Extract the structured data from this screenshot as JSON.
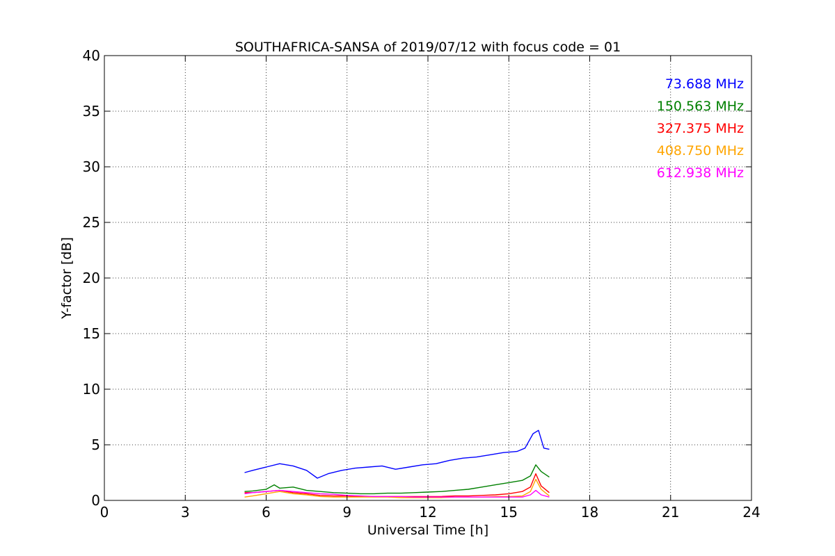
{
  "chart_data": {
    "type": "line",
    "title": "SOUTHAFRICA-SANSA of 2019/07/12 with focus code = 01",
    "xlabel": "Universal Time [h]",
    "ylabel": "Y-factor [dB]",
    "xlim": [
      0,
      24
    ],
    "ylim": [
      0,
      40
    ],
    "x_ticks": [
      0,
      3,
      6,
      9,
      12,
      15,
      18,
      21,
      24
    ],
    "y_ticks": [
      0,
      5,
      10,
      15,
      20,
      25,
      30,
      35,
      40
    ],
    "x_tick_labels": [
      "0",
      "3",
      "6",
      "9",
      "12",
      "15",
      "18",
      "21",
      "24"
    ],
    "y_tick_labels": [
      "0",
      "5",
      "10",
      "15",
      "20",
      "25",
      "30",
      "35",
      "40"
    ],
    "grid": true,
    "legend_position": "top-right",
    "series": [
      {
        "name": "73.688 MHz",
        "color": "#0000ff",
        "x": [
          5.2,
          5.5,
          6.0,
          6.5,
          7.0,
          7.5,
          7.9,
          8.3,
          8.8,
          9.3,
          9.8,
          10.3,
          10.8,
          11.3,
          11.8,
          12.3,
          12.8,
          13.3,
          13.8,
          14.3,
          14.8,
          15.3,
          15.6,
          15.9,
          16.1,
          16.3,
          16.5
        ],
        "y": [
          2.5,
          2.7,
          3.0,
          3.3,
          3.1,
          2.7,
          2.0,
          2.4,
          2.7,
          2.9,
          3.0,
          3.1,
          2.8,
          3.0,
          3.2,
          3.3,
          3.6,
          3.8,
          3.9,
          4.1,
          4.3,
          4.4,
          4.7,
          6.0,
          6.3,
          4.7,
          4.6
        ]
      },
      {
        "name": "150.563 MHz",
        "color": "#008000",
        "x": [
          5.2,
          5.5,
          6.0,
          6.3,
          6.5,
          7.0,
          7.5,
          8.0,
          8.5,
          9.0,
          9.5,
          10.0,
          10.5,
          11.0,
          11.5,
          12.0,
          12.5,
          13.0,
          13.5,
          14.0,
          14.5,
          15.0,
          15.5,
          15.8,
          16.0,
          16.2,
          16.5
        ],
        "y": [
          0.8,
          0.85,
          1.0,
          1.4,
          1.1,
          1.2,
          0.9,
          0.8,
          0.7,
          0.65,
          0.6,
          0.6,
          0.65,
          0.65,
          0.7,
          0.75,
          0.8,
          0.9,
          1.0,
          1.2,
          1.4,
          1.6,
          1.8,
          2.2,
          3.2,
          2.6,
          2.1
        ]
      },
      {
        "name": "327.375 MHz",
        "color": "#ff0000",
        "x": [
          5.2,
          5.5,
          6.0,
          6.5,
          7.0,
          7.5,
          8.0,
          8.5,
          9.0,
          9.5,
          10.0,
          10.5,
          11.0,
          11.5,
          12.0,
          12.5,
          13.0,
          13.5,
          14.0,
          14.5,
          15.0,
          15.5,
          15.8,
          16.0,
          16.2,
          16.5
        ],
        "y": [
          0.7,
          0.7,
          0.8,
          0.9,
          0.7,
          0.6,
          0.45,
          0.4,
          0.4,
          0.35,
          0.35,
          0.35,
          0.35,
          0.35,
          0.35,
          0.35,
          0.4,
          0.4,
          0.45,
          0.5,
          0.6,
          0.8,
          1.2,
          2.4,
          1.3,
          0.7
        ]
      },
      {
        "name": "408.750 MHz",
        "color": "#ffa500",
        "x": [
          5.2,
          5.5,
          6.0,
          6.5,
          7.0,
          7.5,
          8.0,
          8.5,
          9.0,
          9.5,
          10.0,
          10.5,
          11.0,
          11.5,
          12.0,
          12.5,
          13.0,
          13.5,
          14.0,
          14.5,
          15.0,
          15.5,
          15.8,
          16.0,
          16.2,
          16.5
        ],
        "y": [
          0.3,
          0.4,
          0.6,
          0.8,
          0.6,
          0.5,
          0.35,
          0.3,
          0.3,
          0.3,
          0.3,
          0.3,
          0.25,
          0.25,
          0.25,
          0.25,
          0.3,
          0.3,
          0.3,
          0.35,
          0.35,
          0.4,
          0.8,
          1.9,
          1.0,
          0.4
        ]
      },
      {
        "name": "612.938 MHz",
        "color": "#ff00ff",
        "x": [
          5.2,
          5.5,
          6.0,
          6.5,
          7.0,
          7.5,
          8.0,
          8.5,
          9.0,
          9.5,
          10.0,
          10.5,
          11.0,
          11.5,
          12.0,
          12.5,
          13.0,
          13.5,
          14.0,
          14.5,
          15.0,
          15.5,
          15.8,
          16.0,
          16.2,
          16.5
        ],
        "y": [
          0.6,
          0.7,
          0.8,
          0.9,
          0.8,
          0.7,
          0.6,
          0.55,
          0.45,
          0.4,
          0.35,
          0.35,
          0.35,
          0.3,
          0.3,
          0.3,
          0.3,
          0.3,
          0.3,
          0.3,
          0.3,
          0.3,
          0.5,
          0.9,
          0.5,
          0.3
        ]
      }
    ]
  }
}
